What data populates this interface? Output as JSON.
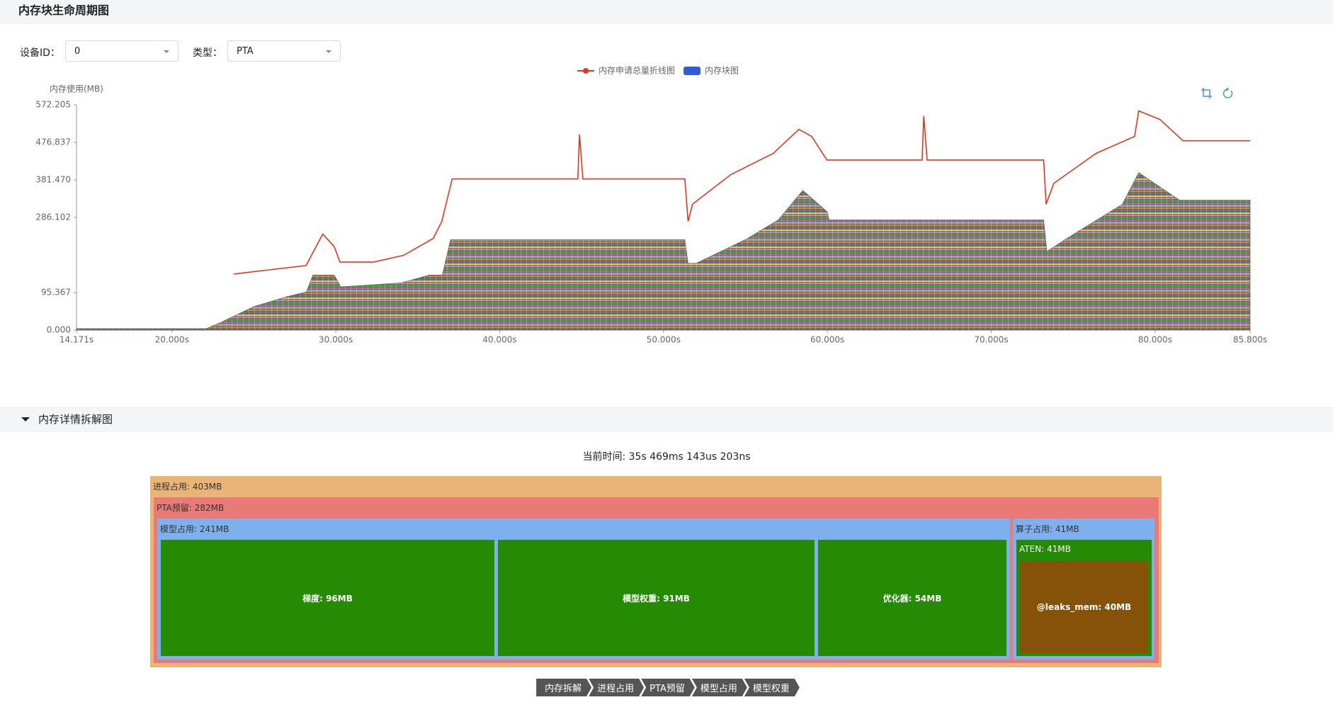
{
  "header": {
    "title": "内存块生命周期图"
  },
  "filters": [
    {
      "label": "设备ID：",
      "value": "0"
    },
    {
      "label": "类型：",
      "value": "PTA"
    }
  ],
  "chart_data": {
    "type": "line",
    "y_label": "内存使用(MB)",
    "xlim": [
      14.171,
      85.8
    ],
    "xticks": [
      {
        "value": 14.171,
        "label": "14.171s"
      },
      {
        "value": 20,
        "label": "20.000s"
      },
      {
        "value": 30,
        "label": "30.000s"
      },
      {
        "value": 40,
        "label": "40.000s"
      },
      {
        "value": 50,
        "label": "50.000s"
      },
      {
        "value": 60,
        "label": "60.000s"
      },
      {
        "value": 70,
        "label": "70.000s"
      },
      {
        "value": 80,
        "label": "80.000s"
      },
      {
        "value": 85.8,
        "label": "85.800s"
      }
    ],
    "ylim": [
      0,
      572.205
    ],
    "yticks": [
      {
        "value": 0,
        "label": "0.000"
      },
      95.367,
      286.102,
      {
        "value": 381.47,
        "label": "381.470"
      },
      476.837,
      572.205
    ],
    "series": [
      {
        "name": "内存申请总量折线图",
        "color": "#e8341c",
        "kind": "line",
        "x": [
          23.77,
          28.18,
          29.2,
          29.9,
          30.25,
          32.3,
          34.14,
          35.95,
          36.47,
          37.1,
          44.77,
          44.87,
          45.08,
          51.3,
          51.5,
          51.77,
          54.1,
          56.7,
          58.26,
          59.04,
          59.97,
          65.78,
          65.88,
          66.09,
          73.2,
          73.35,
          73.82,
          76.4,
          78.75,
          79.0,
          80.3,
          81.7,
          85.8
        ],
        "values": [
          142.5,
          164,
          244,
          212,
          173,
          173,
          190,
          233,
          276,
          384,
          384,
          497,
          384,
          384,
          276,
          320,
          395,
          449,
          510,
          492,
          432,
          432,
          544,
          432,
          432,
          320,
          373,
          449,
          492,
          557,
          535,
          481,
          481
        ]
      },
      {
        "name": "内存块图",
        "color": "#2f5bd6",
        "kind": "blocks",
        "x": [
          14.171,
          22.1,
          23,
          25,
          27,
          28.2,
          28.6,
          29.9,
          30.3,
          34,
          35.7,
          36.5,
          37,
          51.3,
          51.5,
          52,
          55,
          57,
          58.5,
          60,
          60.1,
          73.2,
          73.4,
          74.5,
          78,
          79,
          81.5,
          85.8
        ],
        "values": [
          4,
          4,
          20,
          60,
          85,
          97,
          140,
          140,
          110,
          120,
          140,
          140,
          230,
          230,
          170,
          170,
          230,
          280,
          355,
          300,
          280,
          280,
          200,
          230,
          320,
          400,
          330,
          330
        ]
      }
    ]
  },
  "breakdown": {
    "title": "内存详情拆解图",
    "time": "当前时间: 35s 469ms 143us 203ns",
    "nodes": [
      "进程占用: 403MB",
      "PTA预留: 282MB",
      "模型占用: 241MB",
      "梯度: 96MB",
      "模型权重: 91MB",
      "优化器: 54MB",
      "算子占用: 41MB",
      "ATEN: 41MB",
      "@leaks_mem: 40MB"
    ],
    "breadcrumb": [
      "内存拆解",
      "进程占用",
      "PTA预留",
      "模型占用",
      "模型权重"
    ]
  }
}
